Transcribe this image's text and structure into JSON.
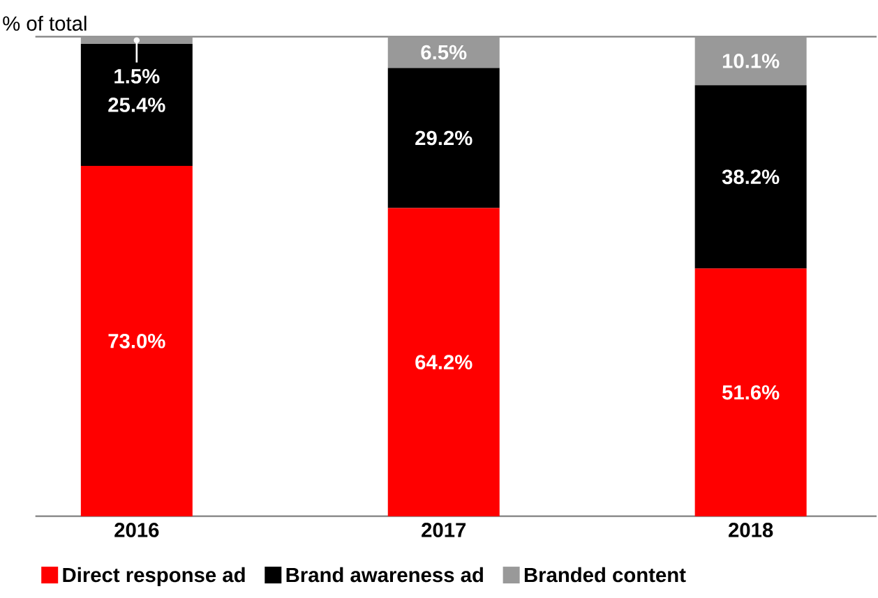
{
  "chart_data": {
    "type": "bar",
    "stacked": true,
    "ylabel": "% of total",
    "categories": [
      "2016",
      "2017",
      "2018"
    ],
    "legend": "bottom left",
    "series": [
      {
        "name": "Direct response ad",
        "color": "#ff0000",
        "values": [
          73.0,
          64.2,
          51.6
        ],
        "value_labels": [
          "73.0%",
          "64.2%",
          "51.6%"
        ]
      },
      {
        "name": "Brand awareness ad",
        "color": "#000000",
        "values": [
          25.4,
          29.2,
          38.2
        ],
        "value_labels": [
          "25.4%",
          "29.2%",
          "38.2%"
        ]
      },
      {
        "name": "Branded content",
        "color": "#999999",
        "values": [
          1.5,
          6.5,
          10.1
        ],
        "value_labels": [
          "1.5%",
          "6.5%",
          "10.1%"
        ]
      }
    ]
  }
}
